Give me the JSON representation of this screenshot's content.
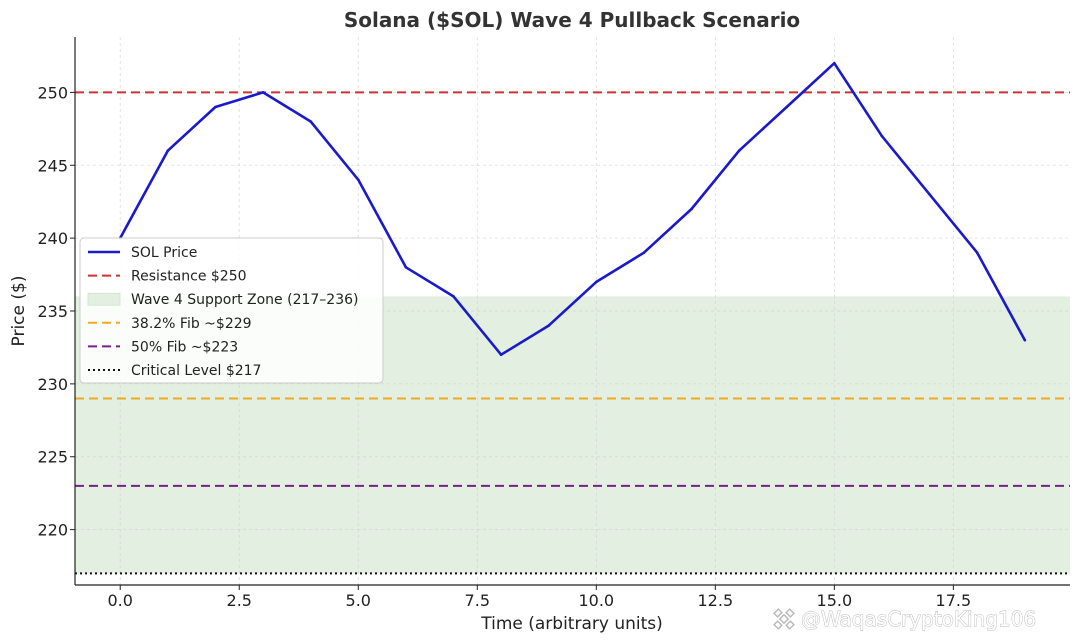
{
  "chart_data": {
    "type": "line",
    "title": "Solana ($SOL) Wave 4 Pullback Scenario",
    "xlabel": "Time (arbitrary units)",
    "ylabel": "Price ($)",
    "xlim": [
      -0.95,
      19.95
    ],
    "ylim": [
      216.2,
      253.8
    ],
    "xticks": [
      0,
      2.5,
      5,
      7.5,
      10,
      12.5,
      15,
      17.5
    ],
    "xtick_labels": [
      "0.0",
      "2.5",
      "5.0",
      "7.5",
      "10.0",
      "12.5",
      "15.0",
      "17.5"
    ],
    "yticks": [
      220,
      225,
      230,
      235,
      240,
      245,
      250
    ],
    "ytick_labels": [
      "220",
      "225",
      "230",
      "235",
      "240",
      "245",
      "250"
    ],
    "grid": true,
    "legend_position": "center-left",
    "series": [
      {
        "name": "SOL Price",
        "color": "#1a1acc",
        "x": [
          0,
          1,
          2,
          3,
          4,
          5,
          6,
          7,
          8,
          9,
          10,
          11,
          12,
          13,
          14,
          15,
          16,
          17,
          18,
          19
        ],
        "values": [
          240,
          246,
          249,
          250,
          248,
          244,
          238,
          236,
          232,
          234,
          237,
          239,
          242,
          246,
          249,
          252,
          247,
          243,
          239,
          233
        ]
      }
    ],
    "bands": [
      {
        "name": "Wave 4 Support Zone (217–236)",
        "from": 217,
        "to": 236,
        "color": "#e3efe0"
      }
    ],
    "hlines": [
      {
        "name": "Resistance $250",
        "value": 250,
        "color": "#cc3333",
        "style": "dashed"
      },
      {
        "name": "38.2% Fib ~$229",
        "value": 229,
        "color": "#f0aa22",
        "style": "dashed"
      },
      {
        "name": "50% Fib ~$223",
        "value": 223,
        "color": "#7a1f8a",
        "style": "dashed"
      },
      {
        "name": "Critical Level $217",
        "value": 217,
        "color": "#111111",
        "style": "dotted"
      }
    ]
  },
  "watermark": {
    "text": "@WaqasCryptoKing106",
    "icon": "binance-logo-icon"
  }
}
